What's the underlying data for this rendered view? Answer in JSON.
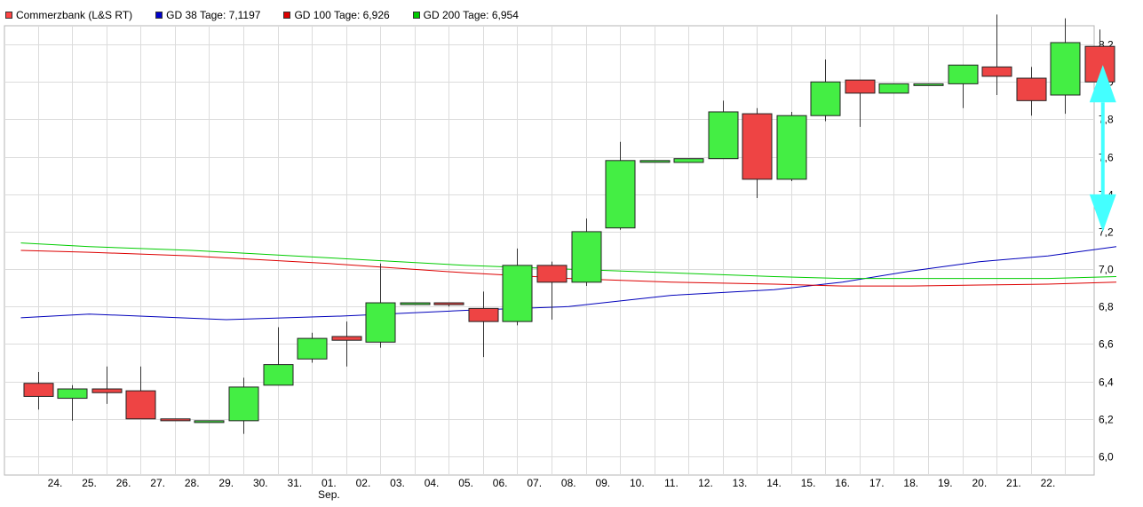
{
  "legend": [
    {
      "label": "Commerzbank (L&S RT)",
      "color": "#ff4444"
    },
    {
      "label": "GD 38 Tage: 7,1197",
      "color": "#0000cc"
    },
    {
      "label": "GD 100 Tage: 6,926",
      "color": "#dd0000"
    },
    {
      "label": "GD 200 Tage: 6,954",
      "color": "#00cc00"
    }
  ],
  "chart_data": {
    "type": "candlestick",
    "categories": [
      "24.",
      "25.",
      "26.",
      "27.",
      "28.",
      "29.",
      "30.",
      "31.",
      "01.",
      "02.",
      "03.",
      "04.",
      "05.",
      "06.",
      "07.",
      "08.",
      "09.",
      "10.",
      "11.",
      "12.",
      "13.",
      "14.",
      "15.",
      "16.",
      "17.",
      "18.",
      "19.",
      "20.",
      "21.",
      "22.",
      ""
    ],
    "month_label": {
      "at": "01.",
      "text": "Sep."
    },
    "ylim": [
      5.9,
      8.3
    ],
    "yticks": [
      6.0,
      6.2,
      6.4,
      6.6,
      6.8,
      7.0,
      7.2,
      7.4,
      7.6,
      7.8,
      8.0,
      8.2
    ],
    "ytick_labels": [
      "6,0",
      "6,2",
      "6,4",
      "6,6",
      "6,8",
      "7,0",
      "7,2",
      "7,4",
      "7,6",
      "7,8",
      "8,0",
      "8,2"
    ],
    "grid": true,
    "up_color": "#44ee44",
    "down_color": "#ee4444",
    "candles": [
      {
        "x": -0.5,
        "open": 6.39,
        "close": 6.32,
        "high": 6.45,
        "low": 6.25
      },
      {
        "x": 0.5,
        "open": 6.31,
        "close": 6.36,
        "high": 6.38,
        "low": 6.19
      },
      {
        "x": 1.5,
        "open": 6.36,
        "close": 6.34,
        "high": 6.48,
        "low": 6.28
      },
      {
        "x": 2.5,
        "open": 6.35,
        "close": 6.2,
        "high": 6.48,
        "low": 6.2
      },
      {
        "x": 3.5,
        "open": 6.2,
        "close": 6.19,
        "high": 6.2,
        "low": 6.19
      },
      {
        "x": 4.5,
        "open": 6.19,
        "close": 6.19,
        "high": 6.19,
        "low": 6.19
      },
      {
        "x": 5.5,
        "open": 6.19,
        "close": 6.37,
        "high": 6.42,
        "low": 6.12
      },
      {
        "x": 6.5,
        "open": 6.38,
        "close": 6.49,
        "high": 6.69,
        "low": 6.38
      },
      {
        "x": 7.5,
        "open": 6.52,
        "close": 6.63,
        "high": 6.66,
        "low": 6.5
      },
      {
        "x": 8.5,
        "open": 6.64,
        "close": 6.62,
        "high": 6.72,
        "low": 6.48
      },
      {
        "x": 9.5,
        "open": 6.61,
        "close": 6.82,
        "high": 7.03,
        "low": 6.58
      },
      {
        "x": 10.5,
        "open": 6.82,
        "close": 6.82,
        "high": 6.82,
        "low": 6.82
      },
      {
        "x": 11.5,
        "open": 6.82,
        "close": 6.81,
        "high": 6.82,
        "low": 6.8
      },
      {
        "x": 12.5,
        "open": 6.79,
        "close": 6.72,
        "high": 6.88,
        "low": 6.53
      },
      {
        "x": 13.5,
        "open": 6.72,
        "close": 7.02,
        "high": 7.11,
        "low": 6.7
      },
      {
        "x": 14.5,
        "open": 7.02,
        "close": 6.93,
        "high": 7.04,
        "low": 6.73
      },
      {
        "x": 15.5,
        "open": 6.93,
        "close": 7.2,
        "high": 7.27,
        "low": 6.91
      },
      {
        "x": 16.5,
        "open": 7.22,
        "close": 7.58,
        "high": 7.68,
        "low": 7.21
      },
      {
        "x": 17.5,
        "open": 7.58,
        "close": 7.58,
        "high": 7.58,
        "low": 7.58
      },
      {
        "x": 18.5,
        "open": 7.57,
        "close": 7.59,
        "high": 7.59,
        "low": 7.57
      },
      {
        "x": 19.5,
        "open": 7.59,
        "close": 7.84,
        "high": 7.9,
        "low": 7.59
      },
      {
        "x": 20.5,
        "open": 7.83,
        "close": 7.48,
        "high": 7.86,
        "low": 7.38
      },
      {
        "x": 21.5,
        "open": 7.48,
        "close": 7.82,
        "high": 7.84,
        "low": 7.47
      },
      {
        "x": 22.5,
        "open": 7.82,
        "close": 8.0,
        "high": 8.12,
        "low": 7.79
      },
      {
        "x": 23.5,
        "open": 8.01,
        "close": 7.94,
        "high": 8.01,
        "low": 7.76
      },
      {
        "x": 24.5,
        "open": 7.94,
        "close": 7.99,
        "high": 7.99,
        "low": 7.94
      },
      {
        "x": 25.5,
        "open": 7.99,
        "close": 7.99,
        "high": 7.99,
        "low": 7.99
      },
      {
        "x": 26.5,
        "open": 7.99,
        "close": 8.09,
        "high": 8.09,
        "low": 7.86
      },
      {
        "x": 27.5,
        "open": 8.08,
        "close": 8.03,
        "high": 8.36,
        "low": 7.93
      },
      {
        "x": 28.5,
        "open": 8.02,
        "close": 7.9,
        "high": 8.08,
        "low": 7.82
      },
      {
        "x": 29.5,
        "open": 7.93,
        "close": 8.21,
        "high": 8.34,
        "low": 7.83
      },
      {
        "x": 30.5,
        "open": 8.19,
        "close": 8.0,
        "high": 8.28,
        "low": 7.96
      }
    ],
    "series": [
      {
        "name": "GD 38 Tage: 7,1197",
        "color": "#0000bb",
        "x": [
          -1,
          1,
          5,
          8.5,
          12,
          15,
          18,
          21,
          23,
          25,
          27,
          29,
          31
        ],
        "values": [
          6.74,
          6.76,
          6.73,
          6.75,
          6.78,
          6.8,
          6.86,
          6.89,
          6.93,
          6.99,
          7.04,
          7.07,
          7.12
        ]
      },
      {
        "name": "GD 100 Tage: 6,926",
        "color": "#dd0000",
        "x": [
          -1,
          1,
          4,
          8,
          12,
          15,
          18,
          21,
          23,
          25,
          27,
          29,
          31
        ],
        "values": [
          7.1,
          7.09,
          7.07,
          7.03,
          6.98,
          6.95,
          6.93,
          6.92,
          6.91,
          6.91,
          6.915,
          6.92,
          6.93
        ]
      },
      {
        "name": "GD 200 Tage: 6,954",
        "color": "#00cc00",
        "x": [
          -1,
          1,
          4,
          8,
          12,
          15,
          18,
          21,
          23,
          25,
          27,
          29,
          31
        ],
        "values": [
          7.14,
          7.12,
          7.1,
          7.06,
          7.02,
          7.0,
          6.98,
          6.96,
          6.95,
          6.95,
          6.95,
          6.95,
          6.96
        ]
      }
    ],
    "annotation": {
      "type": "double-arrow",
      "color": "#44ffff",
      "x": 30.5,
      "y_from": 8.09,
      "y_to": 7.2
    }
  }
}
